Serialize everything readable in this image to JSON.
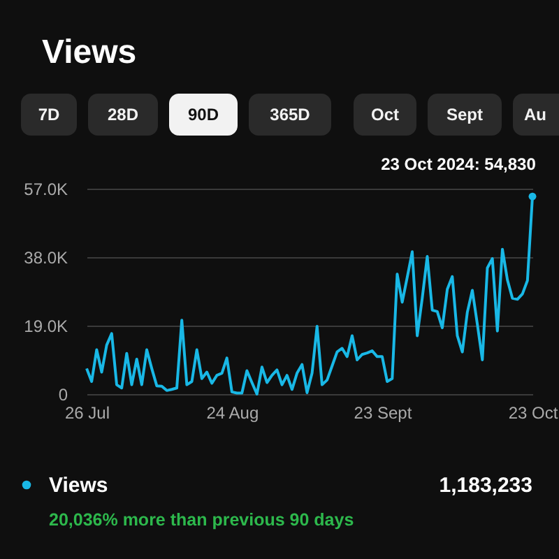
{
  "chart_data": {
    "type": "line",
    "title": "Views",
    "x": [
      "2024-07-26",
      "2024-07-27",
      "2024-07-28",
      "2024-07-29",
      "2024-07-30",
      "2024-07-31",
      "2024-08-01",
      "2024-08-02",
      "2024-08-03",
      "2024-08-04",
      "2024-08-05",
      "2024-08-06",
      "2024-08-07",
      "2024-08-08",
      "2024-08-09",
      "2024-08-10",
      "2024-08-11",
      "2024-08-12",
      "2024-08-13",
      "2024-08-14",
      "2024-08-15",
      "2024-08-16",
      "2024-08-17",
      "2024-08-18",
      "2024-08-19",
      "2024-08-20",
      "2024-08-21",
      "2024-08-22",
      "2024-08-23",
      "2024-08-24",
      "2024-08-25",
      "2024-08-26",
      "2024-08-27",
      "2024-08-28",
      "2024-08-29",
      "2024-08-30",
      "2024-08-31",
      "2024-09-01",
      "2024-09-02",
      "2024-09-03",
      "2024-09-04",
      "2024-09-05",
      "2024-09-06",
      "2024-09-07",
      "2024-09-08",
      "2024-09-09",
      "2024-09-10",
      "2024-09-11",
      "2024-09-12",
      "2024-09-13",
      "2024-09-14",
      "2024-09-15",
      "2024-09-16",
      "2024-09-17",
      "2024-09-18",
      "2024-09-19",
      "2024-09-20",
      "2024-09-21",
      "2024-09-22",
      "2024-09-23",
      "2024-09-24",
      "2024-09-25",
      "2024-09-26",
      "2024-09-27",
      "2024-09-28",
      "2024-09-29",
      "2024-09-30",
      "2024-10-01",
      "2024-10-02",
      "2024-10-03",
      "2024-10-04",
      "2024-10-05",
      "2024-10-06",
      "2024-10-07",
      "2024-10-08",
      "2024-10-09",
      "2024-10-10",
      "2024-10-11",
      "2024-10-12",
      "2024-10-13",
      "2024-10-14",
      "2024-10-15",
      "2024-10-16",
      "2024-10-17",
      "2024-10-18",
      "2024-10-19",
      "2024-10-20",
      "2024-10-21",
      "2024-10-22",
      "2024-10-23"
    ],
    "series": [
      {
        "name": "Views",
        "color": "#19b8e6",
        "values": [
          7100,
          3500,
          12300,
          6100,
          13600,
          16800,
          2600,
          1700,
          11300,
          2600,
          9700,
          2600,
          12300,
          7100,
          2300,
          2200,
          1000,
          1300,
          1700,
          20500,
          2600,
          3500,
          12300,
          4300,
          6100,
          3000,
          5200,
          5800,
          10000,
          600,
          300,
          300,
          6500,
          3200,
          0,
          7500,
          3200,
          5200,
          6700,
          2600,
          5200,
          1300,
          5800,
          8200,
          400,
          5800,
          18800,
          2600,
          3900,
          7800,
          11700,
          12700,
          10400,
          16200,
          9500,
          11000,
          11400,
          12000,
          10400,
          10400,
          3500,
          4300,
          33300,
          25500,
          32400,
          39500,
          16200,
          26600,
          38200,
          23300,
          22900,
          18400,
          29100,
          32600,
          16200,
          11700,
          22700,
          28800,
          19400,
          9500,
          35000,
          37600,
          17500,
          40200,
          31700,
          26600,
          26300,
          27800,
          31500,
          54830
        ]
      }
    ],
    "xlim": [
      "2024-07-26",
      "2024-10-23"
    ],
    "xticks": [
      {
        "value": "2024-07-26",
        "label": "26 Jul"
      },
      {
        "value": "2024-08-24",
        "label": "24 Aug"
      },
      {
        "value": "2024-09-23",
        "label": "23 Sept"
      },
      {
        "value": "2024-10-23",
        "label": "23 Oct"
      }
    ],
    "ylim": [
      0,
      57000
    ],
    "yticks": [
      {
        "value": 0,
        "label": "0"
      },
      {
        "value": 19000,
        "label": "19.0K"
      },
      {
        "value": 38000,
        "label": "38.0K"
      },
      {
        "value": 57000,
        "label": "57.0K"
      }
    ],
    "grid": "y",
    "legend": "bottom",
    "marker": "none",
    "line_style": "solid",
    "annotations": [
      "7D",
      "28D",
      "90D",
      "365D",
      "Oct",
      "Sept",
      "Au",
      "1,183,233",
      "20,036% more than previous 90 days",
      {
        "text": "23 Oct 2024: 54,830",
        "x": "2024-10-23",
        "y": 54830
      }
    ]
  }
}
